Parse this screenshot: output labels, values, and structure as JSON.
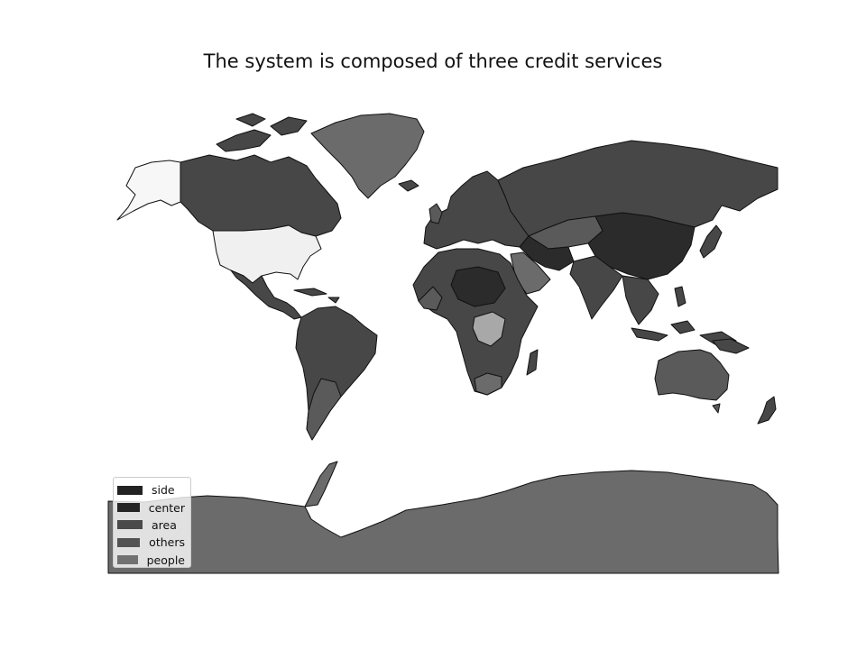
{
  "title": "The system is composed of three credit services",
  "legend": [
    {
      "label": "side",
      "color": "#222222"
    },
    {
      "label": "center",
      "color": "#262626"
    },
    {
      "label": "area",
      "color": "#4a4a4a"
    },
    {
      "label": "others",
      "color": "#535353"
    },
    {
      "label": "people",
      "color": "#717171"
    }
  ],
  "colors": {
    "dark": "#2b2b2b",
    "mid": "#474747",
    "gray": "#5a5a5a",
    "light_gray": "#6b6b6b",
    "pale": "#a8a8a8",
    "white_land": "#f0f0f0"
  }
}
